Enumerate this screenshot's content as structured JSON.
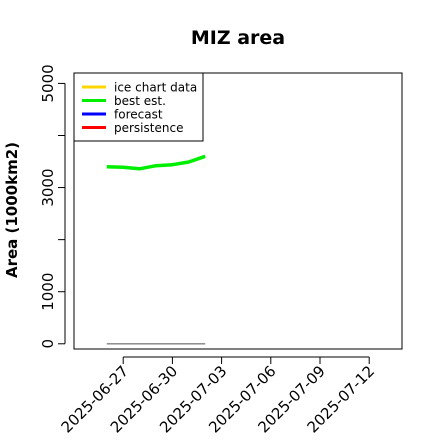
{
  "chart_data": {
    "type": "line",
    "title": "MIZ area",
    "xlabel": "",
    "ylabel": "Area (1000km2)",
    "ylim": [
      -100,
      5200
    ],
    "xlim": [
      "2025-06-24",
      "2025-07-14"
    ],
    "y_ticks": [
      0,
      1000,
      2000,
      3000,
      4000,
      5000
    ],
    "y_tick_labels": [
      "0",
      "1000",
      "",
      "3000",
      "",
      "5000"
    ],
    "x_ticks": [
      "2025-06-27",
      "2025-06-30",
      "2025-07-03",
      "2025-07-06",
      "2025-07-09",
      "2025-07-12"
    ],
    "x_tick_labels": [
      "2025-06-27",
      "2025-06-30",
      "2025-07-03",
      "2025-07-06",
      "2025-07-09",
      "2025-07-12"
    ],
    "highlight_tick": "2025-07-03",
    "highlight_color": "#228B22",
    "legend": {
      "position": "top-left",
      "entries": [
        {
          "label": "ice chart data",
          "color": "#FFD700"
        },
        {
          "label": "best est.",
          "color": "#00EE00"
        },
        {
          "label": "forecast",
          "color": "#0000FF"
        },
        {
          "label": "persistence",
          "color": "#FF0000"
        }
      ]
    },
    "series": [
      {
        "name": "best est.",
        "color": "#00EE00",
        "x": [
          "2025-06-26",
          "2025-06-27",
          "2025-06-28",
          "2025-06-29",
          "2025-06-30",
          "2025-07-01",
          "2025-07-02"
        ],
        "y": [
          3400,
          3390,
          3360,
          3420,
          3440,
          3490,
          3600
        ]
      }
    ],
    "reference_line": {
      "color": "#808080",
      "x": [
        "2025-06-26",
        "2025-07-02"
      ],
      "y": [
        0,
        0
      ]
    }
  }
}
